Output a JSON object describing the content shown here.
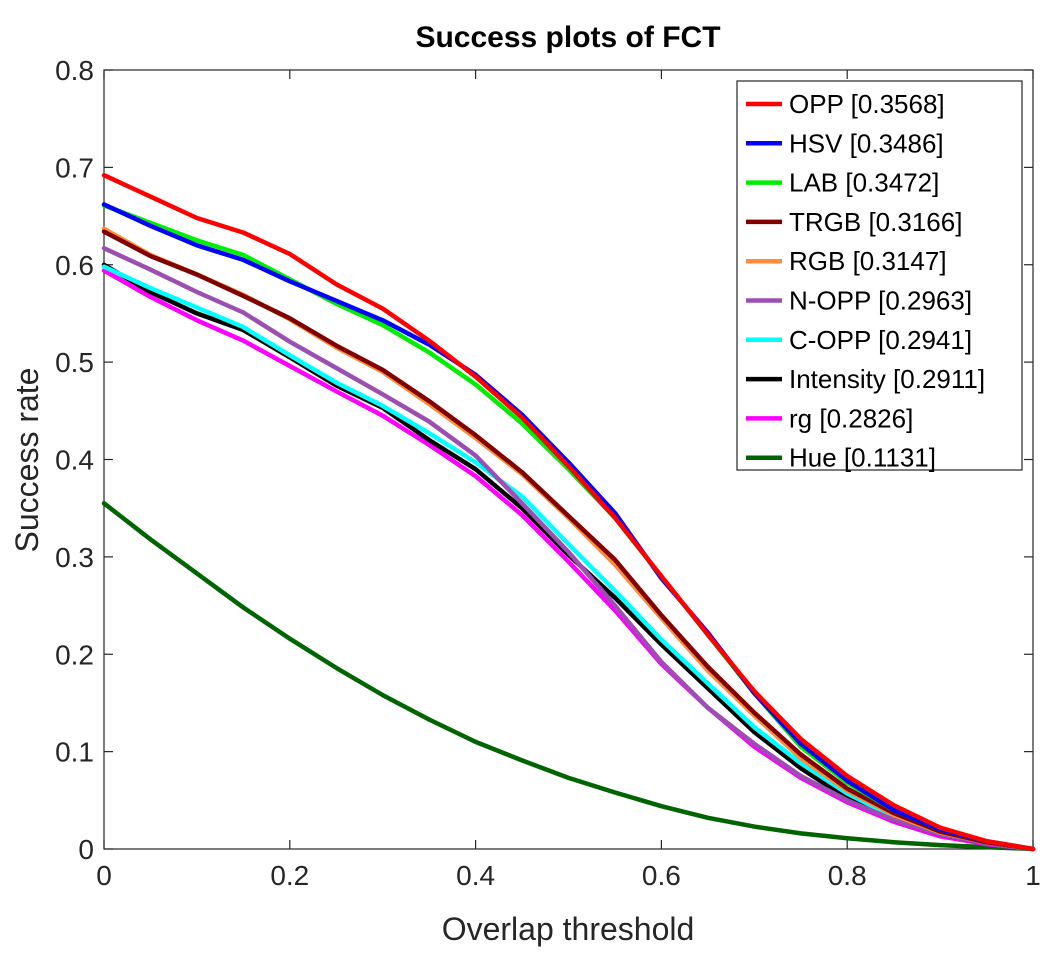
{
  "chart_data": {
    "type": "line",
    "title": "Success plots of FCT",
    "xlabel": "Overlap threshold",
    "ylabel": "Success rate",
    "xlim": [
      0,
      1
    ],
    "ylim": [
      0,
      0.8
    ],
    "xticks": [
      "0",
      "0.2",
      "0.4",
      "0.6",
      "0.8",
      "1"
    ],
    "yticks": [
      "0",
      "0.1",
      "0.2",
      "0.3",
      "0.4",
      "0.5",
      "0.6",
      "0.7",
      "0.8"
    ],
    "grid": false,
    "legend_position": "top-right",
    "x": [
      0,
      0.05,
      0.1,
      0.15,
      0.2,
      0.25,
      0.3,
      0.35,
      0.4,
      0.45,
      0.5,
      0.55,
      0.6,
      0.65,
      0.7,
      0.75,
      0.8,
      0.85,
      0.9,
      0.95,
      1.0
    ],
    "series": [
      {
        "name": "OPP [0.3568]",
        "color": "#ff0000",
        "values": [
          0.692,
          0.67,
          0.648,
          0.633,
          0.611,
          0.58,
          0.555,
          0.522,
          0.485,
          0.443,
          0.393,
          0.34,
          0.28,
          0.22,
          0.162,
          0.113,
          0.075,
          0.045,
          0.022,
          0.008,
          0.0
        ]
      },
      {
        "name": "HSV [0.3486]",
        "color": "#0000ff",
        "values": [
          0.662,
          0.64,
          0.62,
          0.605,
          0.583,
          0.563,
          0.543,
          0.518,
          0.487,
          0.446,
          0.397,
          0.345,
          0.278,
          0.222,
          0.16,
          0.108,
          0.07,
          0.04,
          0.02,
          0.008,
          0.0
        ]
      },
      {
        "name": "LAB [0.3472]",
        "color": "#00ee00",
        "values": [
          0.661,
          0.643,
          0.625,
          0.61,
          0.585,
          0.56,
          0.538,
          0.51,
          0.477,
          0.437,
          0.39,
          0.34,
          0.28,
          0.22,
          0.16,
          0.105,
          0.068,
          0.04,
          0.02,
          0.008,
          0.0
        ]
      },
      {
        "name": "TRGB [0.3166]",
        "color": "#800000",
        "values": [
          0.634,
          0.609,
          0.59,
          0.568,
          0.545,
          0.517,
          0.492,
          0.46,
          0.425,
          0.387,
          0.342,
          0.297,
          0.24,
          0.187,
          0.14,
          0.097,
          0.062,
          0.037,
          0.018,
          0.007,
          0.0
        ]
      },
      {
        "name": "RGB [0.3147]",
        "color": "#ff8c3a",
        "values": [
          0.637,
          0.61,
          0.59,
          0.569,
          0.544,
          0.515,
          0.49,
          0.457,
          0.422,
          0.385,
          0.34,
          0.292,
          0.237,
          0.183,
          0.137,
          0.093,
          0.06,
          0.035,
          0.017,
          0.007,
          0.0
        ]
      },
      {
        "name": "N-OPP [0.2963]",
        "color": "#9b4fb0",
        "values": [
          0.617,
          0.595,
          0.572,
          0.551,
          0.521,
          0.494,
          0.467,
          0.439,
          0.404,
          0.355,
          0.305,
          0.25,
          0.192,
          0.145,
          0.108,
          0.075,
          0.05,
          0.03,
          0.015,
          0.006,
          0.0
        ]
      },
      {
        "name": "C-OPP [0.2941]",
        "color": "#00ffff",
        "values": [
          0.598,
          0.576,
          0.556,
          0.536,
          0.507,
          0.479,
          0.455,
          0.427,
          0.397,
          0.362,
          0.313,
          0.265,
          0.215,
          0.17,
          0.125,
          0.088,
          0.057,
          0.033,
          0.016,
          0.006,
          0.0
        ]
      },
      {
        "name": "Intensity [0.2911]",
        "color": "#000000",
        "values": [
          0.6,
          0.572,
          0.55,
          0.533,
          0.505,
          0.476,
          0.453,
          0.42,
          0.39,
          0.35,
          0.302,
          0.258,
          0.21,
          0.165,
          0.12,
          0.083,
          0.052,
          0.03,
          0.015,
          0.006,
          0.0
        ]
      },
      {
        "name": "rg [0.2826]",
        "color": "#ff00ff",
        "values": [
          0.594,
          0.567,
          0.543,
          0.522,
          0.496,
          0.47,
          0.445,
          0.415,
          0.383,
          0.343,
          0.295,
          0.245,
          0.19,
          0.145,
          0.105,
          0.073,
          0.048,
          0.028,
          0.013,
          0.005,
          0.0
        ]
      },
      {
        "name": "Hue [0.1131]",
        "color": "#006400",
        "values": [
          0.355,
          0.318,
          0.283,
          0.248,
          0.216,
          0.186,
          0.158,
          0.133,
          0.11,
          0.091,
          0.073,
          0.058,
          0.044,
          0.032,
          0.023,
          0.016,
          0.011,
          0.007,
          0.004,
          0.002,
          0.0
        ]
      }
    ]
  }
}
